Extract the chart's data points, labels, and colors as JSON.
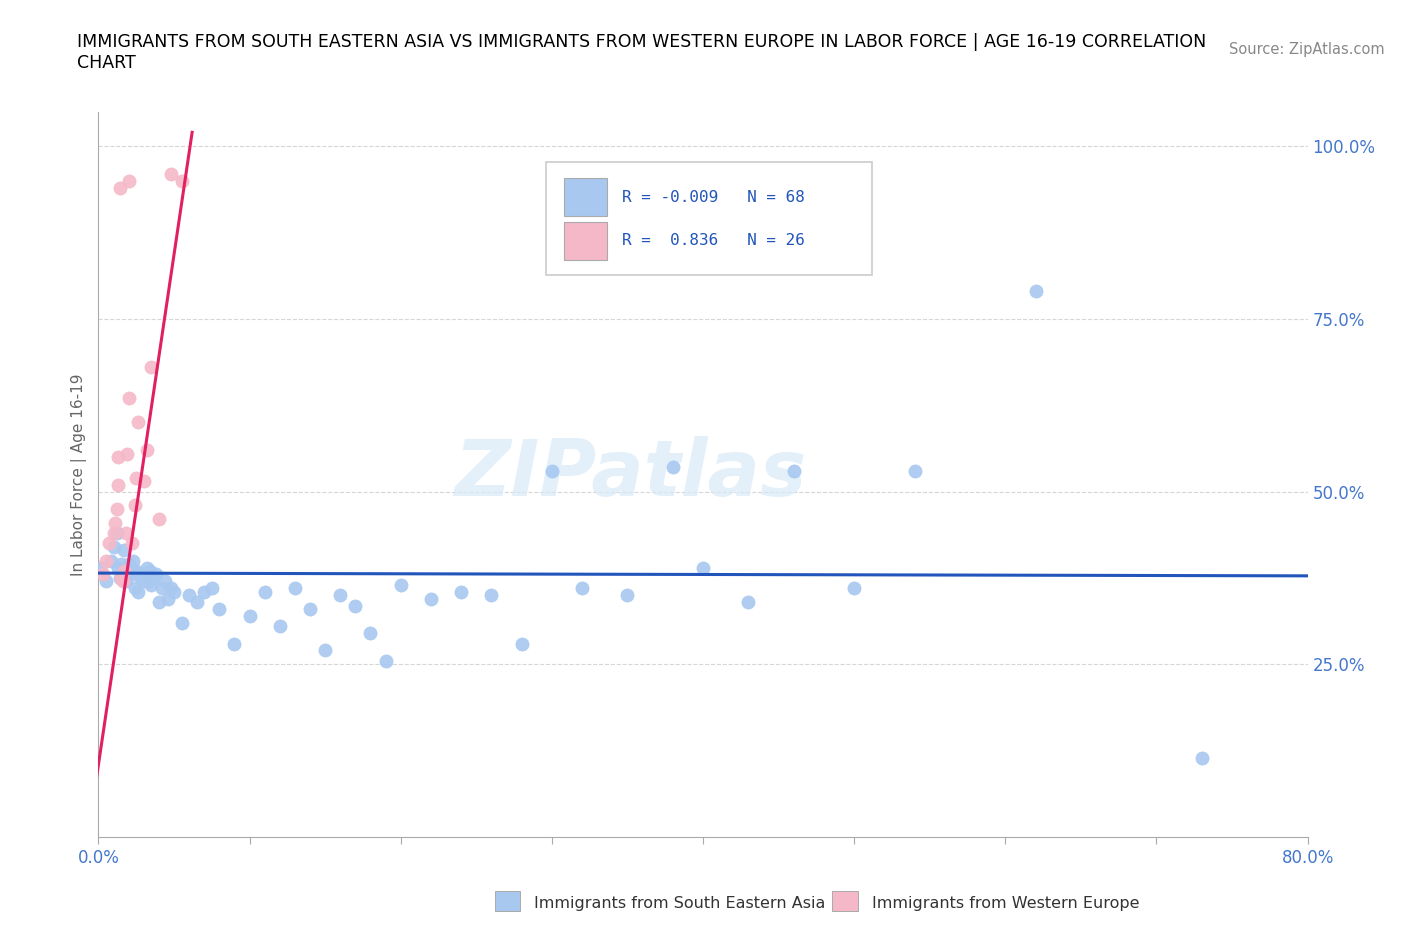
{
  "title_line1": "IMMIGRANTS FROM SOUTH EASTERN ASIA VS IMMIGRANTS FROM WESTERN EUROPE IN LABOR FORCE | AGE 16-19 CORRELATION",
  "title_line2": "CHART",
  "source_text": "Source: ZipAtlas.com",
  "ylabel": "In Labor Force | Age 16-19",
  "xlim": [
    0.0,
    0.8
  ],
  "ylim": [
    0.0,
    1.05
  ],
  "yticks": [
    0.25,
    0.5,
    0.75,
    1.0
  ],
  "ytick_labels": [
    "25.0%",
    "50.0%",
    "75.0%",
    "100.0%"
  ],
  "xticks": [
    0.0,
    0.1,
    0.2,
    0.3,
    0.4,
    0.5,
    0.6,
    0.7,
    0.8
  ],
  "xtick_labels_bottom": [
    "0.0%",
    "",
    "",
    "",
    "",
    "",
    "",
    "",
    "80.0%"
  ],
  "color_blue": "#a8c8f0",
  "color_pink": "#f5b8c8",
  "line_color_blue": "#2255bb",
  "line_color_pink": "#e02060",
  "tick_color": "#4477cc",
  "watermark": "ZIPatlas",
  "blue_scatter_x": [
    0.001,
    0.005,
    0.008,
    0.01,
    0.012,
    0.013,
    0.014,
    0.015,
    0.016,
    0.017,
    0.018,
    0.019,
    0.02,
    0.021,
    0.022,
    0.023,
    0.024,
    0.025,
    0.026,
    0.027,
    0.028,
    0.03,
    0.031,
    0.032,
    0.033,
    0.034,
    0.035,
    0.036,
    0.038,
    0.04,
    0.042,
    0.044,
    0.046,
    0.048,
    0.05,
    0.055,
    0.06,
    0.065,
    0.07,
    0.075,
    0.08,
    0.09,
    0.1,
    0.11,
    0.12,
    0.13,
    0.14,
    0.15,
    0.16,
    0.17,
    0.18,
    0.19,
    0.2,
    0.22,
    0.24,
    0.26,
    0.28,
    0.3,
    0.32,
    0.35,
    0.38,
    0.4,
    0.43,
    0.46,
    0.5,
    0.54,
    0.62,
    0.73
  ],
  "blue_scatter_y": [
    0.39,
    0.37,
    0.4,
    0.42,
    0.44,
    0.39,
    0.375,
    0.395,
    0.385,
    0.415,
    0.37,
    0.38,
    0.395,
    0.39,
    0.38,
    0.4,
    0.36,
    0.385,
    0.355,
    0.38,
    0.375,
    0.37,
    0.38,
    0.39,
    0.37,
    0.385,
    0.365,
    0.375,
    0.38,
    0.34,
    0.36,
    0.37,
    0.345,
    0.36,
    0.355,
    0.31,
    0.35,
    0.34,
    0.355,
    0.36,
    0.33,
    0.28,
    0.32,
    0.355,
    0.305,
    0.36,
    0.33,
    0.27,
    0.35,
    0.335,
    0.295,
    0.255,
    0.365,
    0.345,
    0.355,
    0.35,
    0.28,
    0.53,
    0.36,
    0.35,
    0.535,
    0.39,
    0.34,
    0.53,
    0.36,
    0.53,
    0.79,
    0.115
  ],
  "pink_scatter_x": [
    0.003,
    0.005,
    0.007,
    0.01,
    0.011,
    0.012,
    0.013,
    0.013,
    0.014,
    0.015,
    0.016,
    0.017,
    0.018,
    0.019,
    0.02,
    0.02,
    0.022,
    0.024,
    0.025,
    0.026,
    0.03,
    0.032,
    0.035,
    0.04,
    0.048,
    0.055
  ],
  "pink_scatter_y": [
    0.38,
    0.4,
    0.425,
    0.44,
    0.455,
    0.475,
    0.51,
    0.55,
    0.94,
    0.375,
    0.37,
    0.385,
    0.44,
    0.555,
    0.635,
    0.95,
    0.425,
    0.48,
    0.52,
    0.6,
    0.515,
    0.56,
    0.68,
    0.46,
    0.96,
    0.95
  ],
  "blue_trend_x": [
    0.0,
    0.8
  ],
  "blue_trend_y": [
    0.382,
    0.378
  ],
  "pink_trend_x": [
    -0.002,
    0.062
  ],
  "pink_trend_y": [
    0.075,
    1.02
  ],
  "grid_color": "#cccccc",
  "grid_style": "--",
  "grid_alpha": 0.8
}
